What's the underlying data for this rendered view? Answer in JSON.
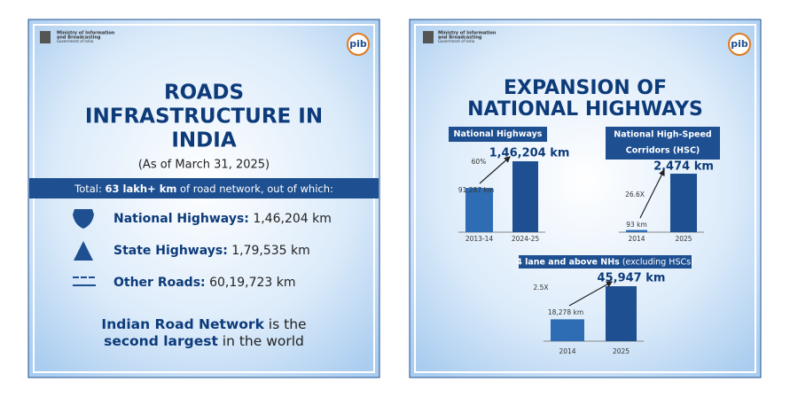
{
  "left": {
    "ministry": [
      "Ministry of Information",
      "and Broadcasting",
      "Government of India"
    ],
    "logo": "pib",
    "title": [
      "ROADS",
      "INFRASTRUCTURE IN",
      "INDIA"
    ],
    "subtitle": "(As of March 31, 2025)",
    "total": [
      "Total: ",
      "63 lakh+ km",
      " of road network, out of which:"
    ],
    "items": [
      {
        "label": "National Highways:",
        "value": " 1,46,204 km"
      },
      {
        "label": "State Highways:",
        "value": " 1,79,535 km"
      },
      {
        "label": "Other Roads:",
        "value": " 60,19,723 km"
      }
    ],
    "footer": [
      [
        "Indian Road Network",
        " is the"
      ],
      [
        "second largest",
        " in the world"
      ]
    ]
  },
  "right": {
    "ministry": [
      "Ministry of Information",
      "and Broadcasting",
      "Government of India"
    ],
    "logo": "pib",
    "title": [
      "EXPANSION OF",
      "NATIONAL HIGHWAYS"
    ],
    "charts": [
      {
        "label": [
          "National Highways"
        ],
        "categories": [
          "2013-14",
          "2024-25"
        ],
        "values": [
          91287,
          146204
        ],
        "value_labels": [
          "91,287 km",
          "1,46,204 km"
        ],
        "growth": "60%"
      },
      {
        "label": [
          "National High-Speed",
          "Corridors (HSC)"
        ],
        "categories": [
          "2014",
          "2025"
        ],
        "values": [
          93,
          2474
        ],
        "value_labels": [
          "93 km",
          "2,474 km"
        ],
        "growth": "26.6X"
      },
      {
        "label": [
          "4 lane and above NHs",
          " (excluding HSCs)"
        ],
        "categories": [
          "2014",
          "2025"
        ],
        "values": [
          18278,
          45947
        ],
        "value_labels": [
          "18,278 km",
          "45,947 km"
        ],
        "growth": "2.5X"
      }
    ]
  }
}
